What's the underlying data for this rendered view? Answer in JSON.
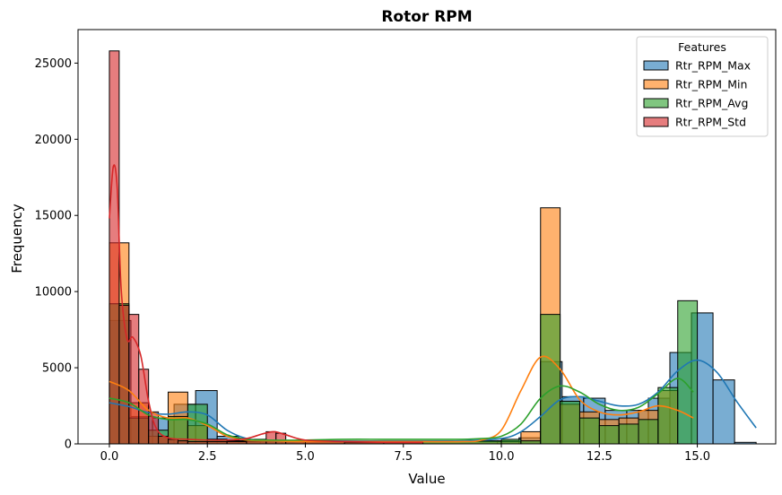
{
  "chart_data": {
    "type": "bar",
    "subtype": "histogram-with-kde",
    "title": "Rotor RPM",
    "xlabel": "Value",
    "ylabel": "Frequency",
    "xlim": [
      -0.8,
      17.0
    ],
    "ylim": [
      0,
      27200
    ],
    "xticks": [
      0.0,
      2.5,
      5.0,
      7.5,
      10.0,
      12.5,
      15.0
    ],
    "xtick_labels": [
      "0.0",
      "2.5",
      "5.0",
      "7.5",
      "10.0",
      "12.5",
      "15.0"
    ],
    "yticks": [
      0,
      5000,
      10000,
      15000,
      20000,
      25000
    ],
    "ytick_labels": [
      "0",
      "5000",
      "10000",
      "15000",
      "20000",
      "25000"
    ],
    "grid": false,
    "legend": {
      "title": "Features",
      "placement": "top-right"
    },
    "series": [
      {
        "name": "Rtr_RPM_Max",
        "color": "#1f77b4",
        "bins": [
          {
            "x0": 0.0,
            "x1": 0.55,
            "count": 8100
          },
          {
            "x0": 0.55,
            "x1": 1.1,
            "count": 1800
          },
          {
            "x0": 1.1,
            "x1": 1.65,
            "count": 1700
          },
          {
            "x0": 1.65,
            "x1": 2.2,
            "count": 2600
          },
          {
            "x0": 2.2,
            "x1": 2.75,
            "count": 3500
          },
          {
            "x0": 2.75,
            "x1": 3.3,
            "count": 500
          },
          {
            "x0": 3.3,
            "x1": 3.85,
            "count": 200
          },
          {
            "x0": 3.85,
            "x1": 4.4,
            "count": 200
          },
          {
            "x0": 4.4,
            "x1": 4.95,
            "count": 150
          },
          {
            "x0": 4.95,
            "x1": 9.9,
            "count": 150
          },
          {
            "x0": 9.9,
            "x1": 10.45,
            "count": 200
          },
          {
            "x0": 10.45,
            "x1": 11.0,
            "count": 400
          },
          {
            "x0": 11.0,
            "x1": 11.55,
            "count": 5400
          },
          {
            "x0": 11.55,
            "x1": 12.1,
            "count": 3100
          },
          {
            "x0": 12.1,
            "x1": 12.65,
            "count": 3000
          },
          {
            "x0": 12.65,
            "x1": 13.2,
            "count": 2200
          },
          {
            "x0": 13.2,
            "x1": 13.75,
            "count": 2200
          },
          {
            "x0": 13.75,
            "x1": 14.3,
            "count": 3000
          },
          {
            "x0": 14.3,
            "x1": 14.85,
            "count": 6000
          },
          {
            "x0": 14.85,
            "x1": 15.4,
            "count": 8600
          },
          {
            "x0": 15.4,
            "x1": 15.95,
            "count": 4200
          },
          {
            "x0": 15.95,
            "x1": 16.5,
            "count": 100
          }
        ],
        "kde": [
          [
            0.0,
            2700
          ],
          [
            0.5,
            2450
          ],
          [
            1.0,
            2050
          ],
          [
            1.5,
            1950
          ],
          [
            2.0,
            2100
          ],
          [
            2.5,
            1900
          ],
          [
            3.0,
            900
          ],
          [
            3.5,
            350
          ],
          [
            4.0,
            200
          ],
          [
            5.0,
            180
          ],
          [
            6.0,
            180
          ],
          [
            7.0,
            180
          ],
          [
            8.0,
            180
          ],
          [
            9.0,
            200
          ],
          [
            10.0,
            350
          ],
          [
            10.5,
            800
          ],
          [
            11.0,
            1800
          ],
          [
            11.5,
            2900
          ],
          [
            12.0,
            3100
          ],
          [
            12.5,
            2800
          ],
          [
            13.0,
            2500
          ],
          [
            13.5,
            2600
          ],
          [
            14.0,
            3400
          ],
          [
            14.5,
            4800
          ],
          [
            15.0,
            5500
          ],
          [
            15.5,
            4700
          ],
          [
            16.0,
            2800
          ],
          [
            16.5,
            1050
          ]
        ]
      },
      {
        "name": "Rtr_RPM_Min",
        "color": "#ff7f0e",
        "bins": [
          {
            "x0": 0.0,
            "x1": 0.5,
            "count": 13200
          },
          {
            "x0": 0.5,
            "x1": 1.0,
            "count": 2700
          },
          {
            "x0": 1.0,
            "x1": 1.5,
            "count": 500
          },
          {
            "x0": 1.5,
            "x1": 2.0,
            "count": 3400
          },
          {
            "x0": 2.0,
            "x1": 2.5,
            "count": 1200
          },
          {
            "x0": 2.5,
            "x1": 3.0,
            "count": 300
          },
          {
            "x0": 3.0,
            "x1": 3.5,
            "count": 200
          },
          {
            "x0": 3.5,
            "x1": 4.0,
            "count": 150
          },
          {
            "x0": 4.0,
            "x1": 10.5,
            "count": 150
          },
          {
            "x0": 10.5,
            "x1": 11.0,
            "count": 800
          },
          {
            "x0": 11.0,
            "x1": 11.5,
            "count": 15500
          },
          {
            "x0": 11.5,
            "x1": 12.0,
            "count": 2600
          },
          {
            "x0": 12.0,
            "x1": 12.5,
            "count": 2100
          },
          {
            "x0": 12.5,
            "x1": 13.0,
            "count": 1600
          },
          {
            "x0": 13.0,
            "x1": 13.5,
            "count": 1700
          },
          {
            "x0": 13.5,
            "x1": 14.0,
            "count": 2200
          },
          {
            "x0": 14.0,
            "x1": 14.5,
            "count": 3500
          }
        ],
        "kde": [
          [
            0.0,
            4100
          ],
          [
            0.5,
            3500
          ],
          [
            1.0,
            2200
          ],
          [
            1.5,
            1700
          ],
          [
            2.0,
            1700
          ],
          [
            2.5,
            1200
          ],
          [
            3.0,
            500
          ],
          [
            3.5,
            250
          ],
          [
            4.0,
            200
          ],
          [
            5.0,
            150
          ],
          [
            6.0,
            150
          ],
          [
            7.0,
            150
          ],
          [
            8.0,
            150
          ],
          [
            9.0,
            150
          ],
          [
            9.5,
            250
          ],
          [
            10.0,
            900
          ],
          [
            10.5,
            3500
          ],
          [
            11.0,
            5700
          ],
          [
            11.5,
            4900
          ],
          [
            12.0,
            2900
          ],
          [
            12.5,
            2100
          ],
          [
            13.0,
            1900
          ],
          [
            13.5,
            2100
          ],
          [
            14.0,
            2500
          ],
          [
            14.5,
            2200
          ],
          [
            14.9,
            1700
          ]
        ]
      },
      {
        "name": "Rtr_RPM_Avg",
        "color": "#2ca02c",
        "bins": [
          {
            "x0": 0.0,
            "x1": 0.5,
            "count": 9200
          },
          {
            "x0": 0.5,
            "x1": 1.0,
            "count": 1700
          },
          {
            "x0": 1.0,
            "x1": 1.5,
            "count": 900
          },
          {
            "x0": 1.5,
            "x1": 2.0,
            "count": 1800
          },
          {
            "x0": 2.0,
            "x1": 2.5,
            "count": 2600
          },
          {
            "x0": 2.5,
            "x1": 3.0,
            "count": 300
          },
          {
            "x0": 3.0,
            "x1": 3.5,
            "count": 200
          },
          {
            "x0": 3.5,
            "x1": 4.0,
            "count": 200
          },
          {
            "x0": 4.0,
            "x1": 10.0,
            "count": 200
          },
          {
            "x0": 10.0,
            "x1": 10.5,
            "count": 300
          },
          {
            "x0": 10.5,
            "x1": 11.0,
            "count": 200
          },
          {
            "x0": 11.0,
            "x1": 11.5,
            "count": 8500
          },
          {
            "x0": 11.5,
            "x1": 12.0,
            "count": 2800
          },
          {
            "x0": 12.0,
            "x1": 12.5,
            "count": 1700
          },
          {
            "x0": 12.5,
            "x1": 13.0,
            "count": 1200
          },
          {
            "x0": 13.0,
            "x1": 13.5,
            "count": 1300
          },
          {
            "x0": 13.5,
            "x1": 14.0,
            "count": 1600
          },
          {
            "x0": 14.0,
            "x1": 14.5,
            "count": 3700
          },
          {
            "x0": 14.5,
            "x1": 15.0,
            "count": 9400
          }
        ],
        "kde": [
          [
            0.0,
            3000
          ],
          [
            0.5,
            2700
          ],
          [
            1.0,
            1900
          ],
          [
            1.5,
            1600
          ],
          [
            2.0,
            1600
          ],
          [
            2.5,
            1300
          ],
          [
            3.0,
            600
          ],
          [
            3.5,
            300
          ],
          [
            4.0,
            250
          ],
          [
            5.0,
            250
          ],
          [
            6.0,
            300
          ],
          [
            7.0,
            300
          ],
          [
            8.0,
            300
          ],
          [
            9.0,
            300
          ],
          [
            9.5,
            350
          ],
          [
            10.0,
            500
          ],
          [
            10.5,
            1300
          ],
          [
            11.0,
            3000
          ],
          [
            11.5,
            3800
          ],
          [
            12.0,
            3400
          ],
          [
            12.5,
            2600
          ],
          [
            13.0,
            2200
          ],
          [
            13.5,
            2400
          ],
          [
            14.0,
            3300
          ],
          [
            14.5,
            4300
          ],
          [
            14.9,
            3400
          ]
        ]
      },
      {
        "name": "Rtr_RPM_Std",
        "color": "#d62728",
        "bins": [
          {
            "x0": 0.0,
            "x1": 0.25,
            "count": 25800
          },
          {
            "x0": 0.25,
            "x1": 0.5,
            "count": 9100
          },
          {
            "x0": 0.5,
            "x1": 0.75,
            "count": 8500
          },
          {
            "x0": 0.75,
            "x1": 1.0,
            "count": 4900
          },
          {
            "x0": 1.0,
            "x1": 1.25,
            "count": 2100
          },
          {
            "x0": 1.25,
            "x1": 1.5,
            "count": 500
          },
          {
            "x0": 1.5,
            "x1": 1.75,
            "count": 300
          },
          {
            "x0": 1.75,
            "x1": 2.0,
            "count": 200
          },
          {
            "x0": 2.0,
            "x1": 2.5,
            "count": 150
          },
          {
            "x0": 2.5,
            "x1": 3.0,
            "count": 150
          },
          {
            "x0": 3.0,
            "x1": 3.5,
            "count": 150
          },
          {
            "x0": 3.5,
            "x1": 4.0,
            "count": 300
          },
          {
            "x0": 4.0,
            "x1": 4.25,
            "count": 800
          },
          {
            "x0": 4.25,
            "x1": 4.5,
            "count": 700
          },
          {
            "x0": 4.5,
            "x1": 5.0,
            "count": 200
          },
          {
            "x0": 5.0,
            "x1": 6.0,
            "count": 150
          },
          {
            "x0": 6.0,
            "x1": 7.0,
            "count": 100
          },
          {
            "x0": 7.0,
            "x1": 8.0,
            "count": 100
          }
        ],
        "kde": [
          [
            0.0,
            14800
          ],
          [
            0.1,
            18200
          ],
          [
            0.2,
            16800
          ],
          [
            0.3,
            10200
          ],
          [
            0.45,
            6900
          ],
          [
            0.6,
            7000
          ],
          [
            0.8,
            5800
          ],
          [
            1.0,
            2800
          ],
          [
            1.2,
            1000
          ],
          [
            1.5,
            400
          ],
          [
            2.0,
            300
          ],
          [
            2.5,
            250
          ],
          [
            3.0,
            250
          ],
          [
            3.5,
            350
          ],
          [
            3.9,
            650
          ],
          [
            4.2,
            800
          ],
          [
            4.5,
            600
          ],
          [
            5.0,
            250
          ],
          [
            6.0,
            150
          ],
          [
            7.0,
            100
          ],
          [
            8.0,
            100
          ]
        ]
      }
    ]
  }
}
